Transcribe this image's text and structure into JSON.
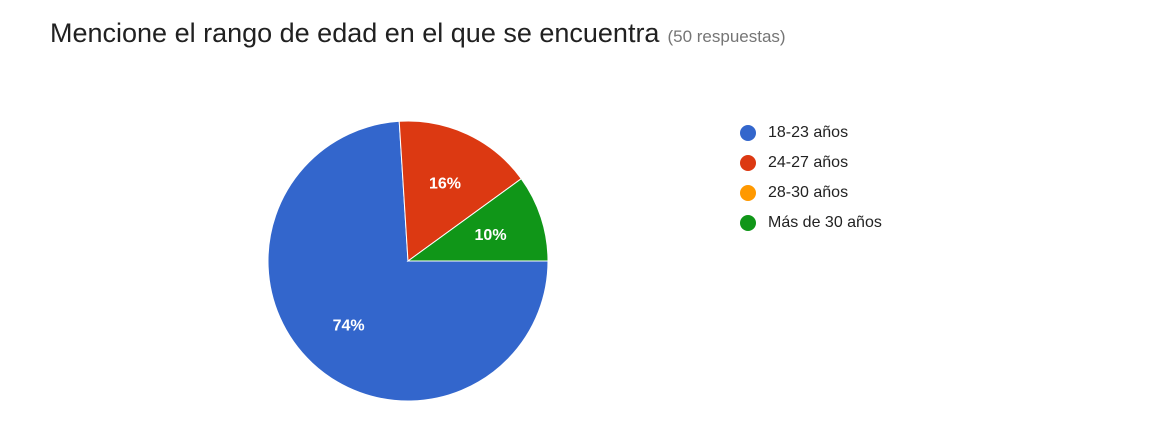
{
  "chart_data": {
    "type": "pie",
    "title": "Mencione el rango de edad en el que se encuentra",
    "subtitle": "(50 respuestas)",
    "legend_position": "right",
    "slices": [
      {
        "label": "18-23 años",
        "value": 74,
        "color": "#3366cc",
        "data_label": "74%"
      },
      {
        "label": "24-27 años",
        "value": 16,
        "color": "#dc3912",
        "data_label": "16%"
      },
      {
        "label": "28-30 años",
        "value": 0,
        "color": "#ff9900",
        "data_label": ""
      },
      {
        "label": "Más de 30 años",
        "value": 10,
        "color": "#109618",
        "data_label": "10%"
      }
    ]
  }
}
